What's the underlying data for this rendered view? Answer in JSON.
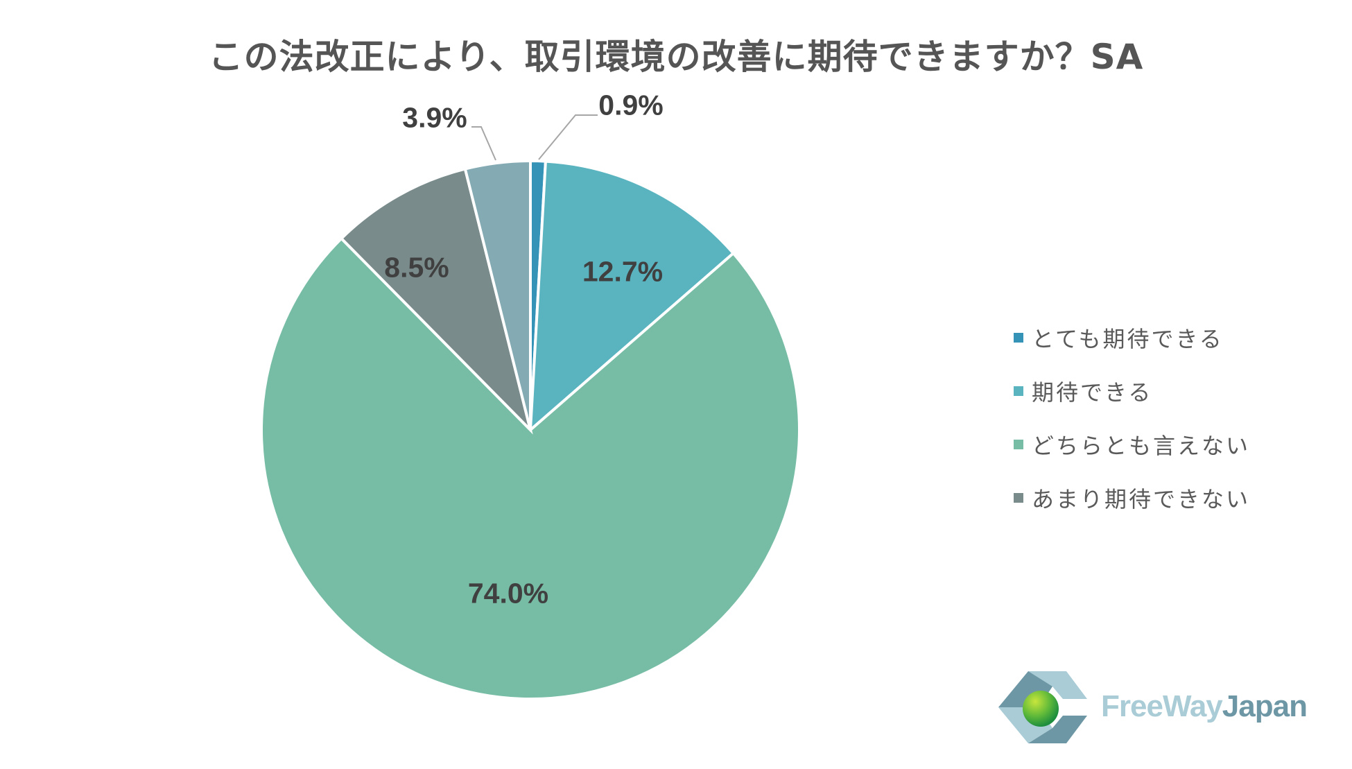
{
  "title": "この法改正により、取引環境の改善に期待できますか？SA",
  "chart_data": {
    "type": "pie",
    "title": "この法改正により、取引環境の改善に期待できますか？SA",
    "start_angle_deg": 0,
    "direction": "clockwise",
    "slices": [
      {
        "label": "とても期待できる",
        "value": 0.9,
        "display": "0.9%",
        "color": "#3593B8",
        "in_legend": true
      },
      {
        "label": "期待できる",
        "value": 12.7,
        "display": "12.7%",
        "color": "#5AB4BF",
        "in_legend": true
      },
      {
        "label": "どちらとも言えない",
        "value": 74.0,
        "display": "74.0%",
        "color": "#77BDA6",
        "in_legend": true
      },
      {
        "label": "あまり期待できない",
        "value": 8.5,
        "display": "8.5%",
        "color": "#7A8B8C",
        "in_legend": true
      },
      {
        "label": "",
        "value": 3.9,
        "display": "3.9%",
        "color": "#84ABB4",
        "in_legend": false
      }
    ],
    "legend_position": "right"
  },
  "legend": [
    {
      "label": "とても期待できる",
      "color": "#3593B8"
    },
    {
      "label": "期待できる",
      "color": "#5AB4BF"
    },
    {
      "label": "どちらとも言えない",
      "color": "#77BDA6"
    },
    {
      "label": "あまり期待できない",
      "color": "#7A8B8C"
    }
  ],
  "logo": {
    "part1": "FreeWay",
    "part2": "Japan"
  }
}
